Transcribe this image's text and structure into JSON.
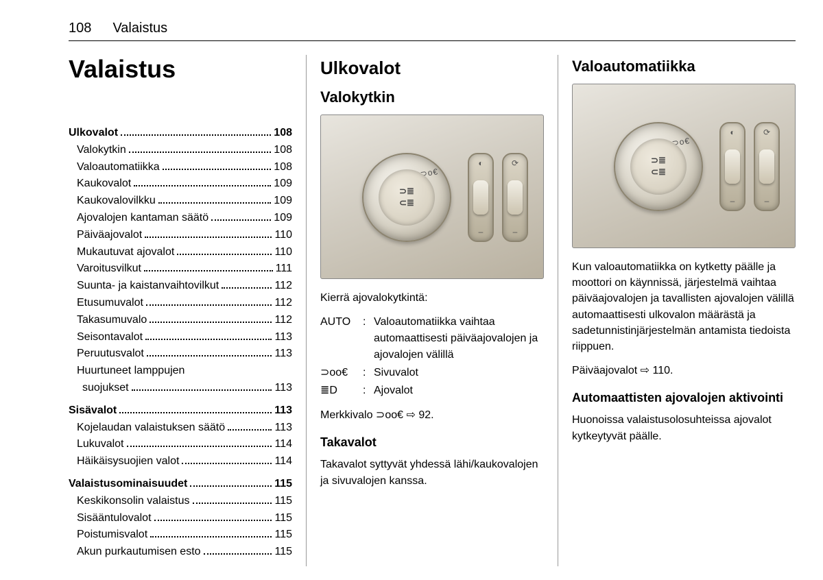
{
  "header": {
    "page_number": "108",
    "section": "Valaistus"
  },
  "col1": {
    "title": "Valaistus",
    "toc": [
      {
        "type": "group",
        "label": "Ulkovalot",
        "page": "108",
        "items": [
          {
            "label": "Valokytkin",
            "page": "108"
          },
          {
            "label": "Valoautomatiikka",
            "page": "108"
          },
          {
            "label": "Kaukovalot",
            "page": "109"
          },
          {
            "label": "Kaukovalovilkku",
            "page": "109"
          },
          {
            "label": "Ajovalojen kantaman säätö",
            "page": "109"
          },
          {
            "label": "Päiväajovalot",
            "page": "110"
          },
          {
            "label": "Mukautuvat ajovalot",
            "page": "110"
          },
          {
            "label": "Varoitusvilkut",
            "page": "111"
          },
          {
            "label": "Suunta- ja kaistanvaihtovilkut",
            "page": "112",
            "nodots": true
          },
          {
            "label": "Etusumuvalot",
            "page": "112"
          },
          {
            "label": "Takasumuvalo",
            "page": "112"
          },
          {
            "label": "Seisontavalot",
            "page": "113"
          },
          {
            "label": "Peruutusvalot",
            "page": "113"
          },
          {
            "label": "Huurtuneet lamppujen suojukset",
            "page": "113",
            "wrap": true
          }
        ]
      },
      {
        "type": "group",
        "label": "Sisävalot",
        "page": "113",
        "items": [
          {
            "label": "Kojelaudan valaistuksen säätö",
            "page": "113",
            "nodots": true
          },
          {
            "label": "Lukuvalot",
            "page": "114"
          },
          {
            "label": "Häikäisysuojien valot",
            "page": "114"
          }
        ]
      },
      {
        "type": "group",
        "label": "Valaistusominaisuudet",
        "page": "115",
        "items": [
          {
            "label": "Keskikonsolin valaistus",
            "page": "115"
          },
          {
            "label": "Sisääntulovalot",
            "page": "115"
          },
          {
            "label": "Poistumisvalot",
            "page": "115"
          },
          {
            "label": "Akun purkautumisen esto",
            "page": "115"
          }
        ]
      }
    ]
  },
  "col2": {
    "h2": "Ulkovalot",
    "h3": "Valokytkin",
    "intro": "Kierrä ajovalokytkintä:",
    "defs": [
      {
        "term": "AUTO",
        "desc": "Valoautomatiikka vaihtaa automaattisesti päiväajovalojen ja ajovalojen välillä"
      },
      {
        "term_icon": "sidelight",
        "desc": "Sivuvalot"
      },
      {
        "term_icon": "headlight",
        "desc": "Ajovalot"
      }
    ],
    "indicator_line_prefix": "Merkkivalo ",
    "indicator_ref": "92",
    "h4": "Takavalot",
    "rear_text": "Takavalot syttyvät yhdessä lähi/kaukovalojen ja sivuvalojen kanssa."
  },
  "col3": {
    "h3": "Valoautomatiikka",
    "para1": "Kun valoautomatiikka on kytketty päälle ja moottori on käynnissä, järjestelmä vaihtaa päiväajovalojen ja tavallisten ajovalojen välillä automaattisesti ulkovalon määrästä ja sadetunnistinjärjestelmän antamista tiedoista riippuen.",
    "drl_prefix": "Päiväajovalot ",
    "drl_ref": "110",
    "h4": "Automaattisten ajovalojen aktivointi",
    "para2": "Huonoissa valaistusolosuhteissa ajovalot kytkeytyvät päälle."
  },
  "icons": {
    "sidelight_glyph": "⊃oo€",
    "headlight_glyph": "≣D",
    "arrow": "⇨"
  }
}
